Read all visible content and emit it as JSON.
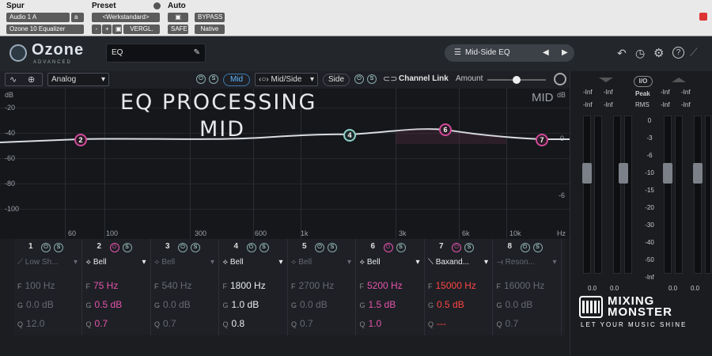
{
  "host": {
    "spur_label": "Spur",
    "preset_label": "Preset",
    "auto_label": "Auto",
    "track_select": "Audio 1 A",
    "track_mode": "a",
    "plugin_select": "Ozone 10 Equalizer",
    "preset_select": "<Werkstandard>",
    "minus": "-",
    "plus": "+",
    "compare": "VERGL.",
    "bypass": "BYPASS",
    "safe": "SAFE",
    "native": "Native"
  },
  "header": {
    "logo": "Ozone",
    "logo_sub": "ADVANCED",
    "module_name": "EQ",
    "preset_name": "Mid-Side EQ"
  },
  "toolbar": {
    "mode_select": "Analog",
    "mid_label": "Mid",
    "midside_select": "Mid/Side",
    "side_label": "Side",
    "channel_link": "Channel Link",
    "amount_label": "Amount"
  },
  "graph": {
    "y_labels": [
      "dB",
      "-20",
      "-40",
      "-60",
      "-80",
      "-100"
    ],
    "right_labels": [
      "MID",
      "dB",
      "0",
      "-6"
    ],
    "x_labels": [
      "60",
      "100",
      "300",
      "600",
      "1k",
      "3k",
      "6k",
      "10k",
      "Hz"
    ],
    "overlay_line1": "EQ PROCESSING",
    "overlay_line2": "MID",
    "nodes": [
      "2",
      "4",
      "6",
      "7"
    ]
  },
  "bands": [
    {
      "num": "1",
      "type": "Low Sh...",
      "f": "100 Hz",
      "g": "0.0 dB",
      "q": "12.0",
      "state": "off"
    },
    {
      "num": "2",
      "type": "Bell",
      "f": "75 Hz",
      "g": "0.5 dB",
      "q": "0.7",
      "state": "pink"
    },
    {
      "num": "3",
      "type": "Bell",
      "f": "540 Hz",
      "g": "0.0 dB",
      "q": "0.7",
      "state": "off"
    },
    {
      "num": "4",
      "type": "Bell",
      "f": "1800 Hz",
      "g": "1.0 dB",
      "q": "0.8",
      "state": "on"
    },
    {
      "num": "5",
      "type": "Bell",
      "f": "2700 Hz",
      "g": "0.0 dB",
      "q": "0.7",
      "state": "off"
    },
    {
      "num": "6",
      "type": "Bell",
      "f": "5200 Hz",
      "g": "1.5 dB",
      "q": "1.0",
      "state": "pink"
    },
    {
      "num": "7",
      "type": "Baxand...",
      "f": "15000 Hz",
      "g": "0.5 dB",
      "q": "---",
      "state": "red"
    },
    {
      "num": "8",
      "type": "Reson...",
      "f": "16000 Hz",
      "g": "0.0 dB",
      "q": "0.7",
      "state": "off"
    }
  ],
  "band_keys": {
    "f": "F",
    "g": "G",
    "q": "Q"
  },
  "meters": {
    "io": "I/O",
    "peak": "Peak",
    "rms": "RMS",
    "inf": "-Inf",
    "inf2": "-Inf",
    "inf3": "-Inf",
    "inf4": "-Inf",
    "inf5": "-Inf",
    "inf6": "-Inf",
    "inf7": "-Inf",
    "inf8": "-Inf",
    "scale": [
      "0",
      "-3",
      "-6",
      "-10",
      "-15",
      "-20",
      "-30",
      "-40",
      "-50",
      "-Inf"
    ],
    "zero_a": "0.0",
    "zero_b": "0.0",
    "zero_c": "0.0",
    "zero_d": "0.0"
  },
  "brand": {
    "line1": "MIXING",
    "line2": "MONSTER",
    "tagline": "LET YOUR MUSIC SHINE"
  }
}
